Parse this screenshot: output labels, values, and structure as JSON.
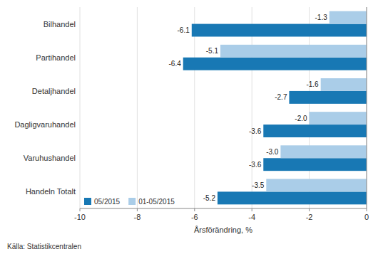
{
  "chart_data": {
    "type": "bar",
    "orientation": "horizontal",
    "categories": [
      "Handeln Totalt",
      "Varuhushandel",
      "Dagligvaruhandel",
      "Detaljhandel",
      "Partihandel",
      "Bilhandel"
    ],
    "series": [
      {
        "name": "05/2015",
        "color": "#1878b4",
        "values": [
          -5.2,
          -3.6,
          -3.6,
          -2.7,
          -6.4,
          -6.1
        ],
        "value_labels": [
          "-5.2",
          "-3.6",
          "-3.6",
          "-2.7",
          "-6.4",
          "-6.1"
        ]
      },
      {
        "name": "01-05/2015",
        "color": "#aacde8",
        "values": [
          -3.5,
          -3.0,
          -2.0,
          -1.6,
          -5.1,
          -1.3
        ],
        "value_labels": [
          "-3.5",
          "-3.0",
          "-2.0",
          "-1.6",
          "-5.1",
          "-1.3"
        ]
      }
    ],
    "xlabel": "Årsförändring, %",
    "source": "Källa:  Statistikcentralen",
    "xlim": [
      -10,
      0
    ],
    "xticks": [
      -10,
      -8,
      -6,
      -4,
      -2,
      0
    ],
    "grid": true,
    "legend": "lower left",
    "data_labels": true
  }
}
